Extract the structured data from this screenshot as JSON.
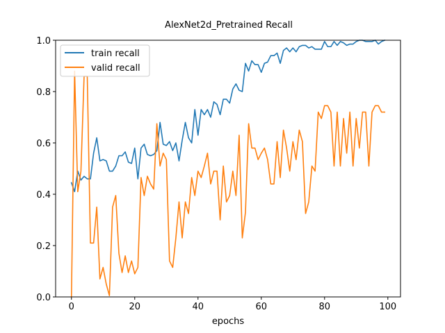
{
  "chart_data": {
    "type": "line",
    "title": "AlexNet2d_Pretrained Recall",
    "xlabel": "epochs",
    "ylabel": "",
    "xlim": [
      -5,
      104
    ],
    "ylim": [
      0,
      1.0
    ],
    "xticks": [
      0,
      20,
      40,
      60,
      80,
      100
    ],
    "yticks": [
      0.0,
      0.2,
      0.4,
      0.6,
      0.8,
      1.0
    ],
    "xtick_labels": [
      "0",
      "20",
      "40",
      "60",
      "80",
      "100"
    ],
    "ytick_labels": [
      "0.0",
      "0.2",
      "0.4",
      "0.6",
      "0.8",
      "1.0"
    ],
    "legend_position": "top-left",
    "grid": false,
    "series": [
      {
        "name": "train recall",
        "color": "#1f77b4",
        "values": [
          0.445,
          0.41,
          0.49,
          0.455,
          0.47,
          0.46,
          0.46,
          0.56,
          0.62,
          0.53,
          0.535,
          0.53,
          0.49,
          0.49,
          0.51,
          0.55,
          0.55,
          0.565,
          0.525,
          0.52,
          0.58,
          0.46,
          0.58,
          0.595,
          0.555,
          0.55,
          0.555,
          0.57,
          0.68,
          0.595,
          0.59,
          0.605,
          0.57,
          0.6,
          0.53,
          0.61,
          0.68,
          0.62,
          0.6,
          0.73,
          0.63,
          0.73,
          0.71,
          0.73,
          0.7,
          0.76,
          0.75,
          0.71,
          0.77,
          0.77,
          0.755,
          0.81,
          0.83,
          0.805,
          0.8,
          0.91,
          0.88,
          0.92,
          0.905,
          0.905,
          0.875,
          0.91,
          0.915,
          0.94,
          0.94,
          0.95,
          0.91,
          0.96,
          0.97,
          0.955,
          0.97,
          0.955,
          0.975,
          0.98,
          0.98,
          0.97,
          0.975,
          0.965,
          0.965,
          0.965,
          0.995,
          0.975,
          0.975,
          0.995,
          0.98,
          0.995,
          0.99,
          0.98,
          0.985,
          0.985,
          0.995,
          1.0,
          1.0,
          0.995,
          0.995,
          0.995,
          1.0,
          0.985,
          0.995,
          1.0
        ]
      },
      {
        "name": "valid recall",
        "color": "#ff7f0e",
        "values": [
          0.0,
          0.88,
          0.41,
          0.49,
          0.86,
          0.86,
          0.21,
          0.21,
          0.35,
          0.07,
          0.115,
          0.05,
          0.005,
          0.35,
          0.395,
          0.17,
          0.095,
          0.16,
          0.095,
          0.14,
          0.09,
          0.115,
          0.465,
          0.395,
          0.47,
          0.44,
          0.42,
          0.675,
          0.51,
          0.56,
          0.535,
          0.14,
          0.115,
          0.23,
          0.37,
          0.23,
          0.37,
          0.325,
          0.465,
          0.395,
          0.49,
          0.465,
          0.51,
          0.56,
          0.44,
          0.49,
          0.49,
          0.3,
          0.51,
          0.37,
          0.395,
          0.49,
          0.395,
          0.63,
          0.23,
          0.33,
          0.675,
          0.58,
          0.58,
          0.535,
          0.56,
          0.58,
          0.535,
          0.44,
          0.44,
          0.605,
          0.465,
          0.65,
          0.58,
          0.49,
          0.605,
          0.535,
          0.65,
          0.605,
          0.325,
          0.37,
          0.51,
          0.49,
          0.72,
          0.695,
          0.745,
          0.745,
          0.72,
          0.51,
          0.72,
          0.51,
          0.695,
          0.56,
          0.72,
          0.51,
          0.695,
          0.58,
          0.72,
          0.72,
          0.51,
          0.72,
          0.745,
          0.745,
          0.72,
          0.72
        ]
      }
    ]
  }
}
